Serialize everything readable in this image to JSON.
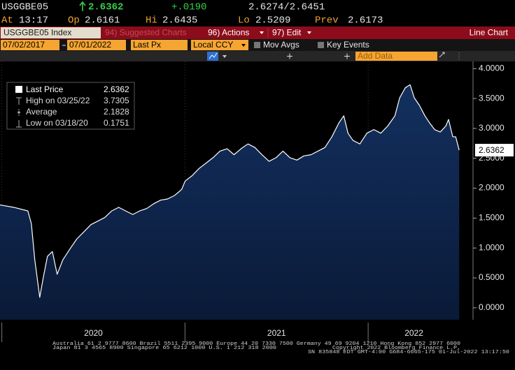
{
  "header": {
    "ticker": "USGGBE05",
    "last": "2.6362",
    "change": "+.0190",
    "bid_ask": "2.6274/2.6451",
    "time_label": "At",
    "time": "13:17",
    "open_label": "Op",
    "open": "2.6161",
    "high_label": "Hi",
    "high": "2.6435",
    "low_label": "Lo",
    "low": "2.5209",
    "prev_label": "Prev",
    "prev": "2.6173"
  },
  "menu": {
    "security": "USGGBE05 Index",
    "suggested": "94) Suggested Charts",
    "actions": "96) Actions",
    "edit": "97) Edit",
    "chart_type": "Line Chart"
  },
  "controls": {
    "start_date": "07/02/2017",
    "end_date": "07/01/2022",
    "field": "Last Px",
    "currency": "Local CCY",
    "mov_avgs": "Mov Avgs",
    "key_events": "Key Events",
    "add_data": "Add Data"
  },
  "chart_data": {
    "type": "line",
    "x": [
      2019.99,
      2020.065,
      2020.142,
      2020.161,
      2020.18,
      2020.207,
      2020.226,
      2020.249,
      2020.276,
      2020.302,
      2020.333,
      2020.371,
      2020.409,
      2020.448,
      2020.486,
      2020.524,
      2020.562,
      2020.6,
      2020.638,
      2020.676,
      2020.715,
      2020.753,
      2020.791,
      2020.829,
      2020.867,
      2020.905,
      2020.944,
      2020.982,
      2021.001,
      2021.039,
      2021.077,
      2021.115,
      2021.153,
      2021.191,
      2021.23,
      2021.268,
      2021.306,
      2021.344,
      2021.382,
      2021.42,
      2021.459,
      2021.497,
      2021.535,
      2021.573,
      2021.611,
      2021.649,
      2021.688,
      2021.726,
      2021.764,
      2021.802,
      2021.84,
      2021.867,
      2021.89,
      2021.917,
      2021.955,
      2021.993,
      2022.031,
      2022.069,
      2022.107,
      2022.146,
      2022.172,
      2022.203,
      2022.229,
      2022.252,
      2022.279,
      2022.31,
      2022.336,
      2022.363,
      2022.394,
      2022.424,
      2022.439,
      2022.462,
      2022.478,
      2022.497
    ],
    "series": [
      {
        "name": "Last Price",
        "color": "#ffffff",
        "legend_value": "2.6362",
        "end_label": "2.6362",
        "values": [
          1.72,
          1.68,
          1.62,
          1.41,
          0.8,
          0.1751,
          0.5,
          0.86,
          0.94,
          0.56,
          0.8,
          0.98,
          1.15,
          1.27,
          1.39,
          1.45,
          1.51,
          1.62,
          1.68,
          1.62,
          1.56,
          1.62,
          1.66,
          1.74,
          1.8,
          1.82,
          1.88,
          1.98,
          2.12,
          2.21,
          2.33,
          2.42,
          2.51,
          2.62,
          2.66,
          2.56,
          2.66,
          2.74,
          2.68,
          2.56,
          2.45,
          2.51,
          2.62,
          2.51,
          2.47,
          2.54,
          2.56,
          2.62,
          2.68,
          2.86,
          3.09,
          3.21,
          2.92,
          2.8,
          2.74,
          2.92,
          2.98,
          2.92,
          3.04,
          3.21,
          3.51,
          3.68,
          3.7305,
          3.51,
          3.39,
          3.21,
          3.09,
          2.98,
          2.94,
          3.04,
          3.15,
          2.86,
          2.86,
          2.6362
        ]
      }
    ],
    "stats": [
      {
        "label": "High on 03/25/22",
        "value": "3.7305"
      },
      {
        "label": "Average",
        "value": "2.1828"
      },
      {
        "label": "Low on 03/18/20",
        "value": "0.1751"
      }
    ],
    "xlim": [
      2019.99,
      2022.5
    ],
    "xticks": [
      {
        "value": 2020,
        "label": "2020"
      },
      {
        "value": 2021,
        "label": "2021"
      },
      {
        "value": 2022,
        "label": "2022"
      }
    ],
    "ylim": [
      -0.2,
      4.12
    ],
    "yticks": [
      {
        "value": 0,
        "label": "0.0000"
      },
      {
        "value": 0.5,
        "label": "0.5000"
      },
      {
        "value": 1,
        "label": "1.0000"
      },
      {
        "value": 1.5,
        "label": "1.5000"
      },
      {
        "value": 2,
        "label": "2.0000"
      },
      {
        "value": 2.5,
        "label": "2.5000"
      },
      {
        "value": 3,
        "label": "3.0000"
      },
      {
        "value": 3.5,
        "label": "3.5000"
      },
      {
        "value": 4,
        "label": "4.0000"
      }
    ],
    "area_color": "#0e2247"
  },
  "footer": {
    "line1": "Australia 61 2 9777 8600 Brazil 5511 2395 9000 Europe 44 20 7330 7500 Germany 49 69 9204 1210 Hong Kong 852 2977 6000",
    "line2": "Japan 81 3 4565 8900 Singapore 65 6212 1000 U.S. 1 212 318 2000",
    "copyright": "Copyright 2022 Bloomberg Finance L.P.",
    "line3": "SN 835848 EDT  GMT-4:00 G684-6665-175 01-Jul-2022 13:17:50"
  }
}
